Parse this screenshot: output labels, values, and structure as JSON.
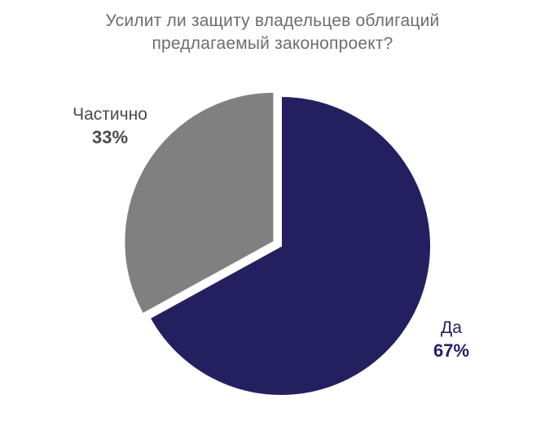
{
  "chart_data": {
    "type": "pie",
    "title": "Усилит ли защиту владельцев облигаций предлагаемый законопроект?",
    "title_lines": [
      "Усилит ли защиту владельцев облигаций",
      "предлагаемый законопроект?"
    ],
    "slices": [
      {
        "label": "Да",
        "value": 67,
        "display": "67%",
        "color": "#24205f",
        "exploded": false
      },
      {
        "label": "Частично",
        "value": 33,
        "display": "33%",
        "color": "#808080",
        "exploded": true
      }
    ]
  }
}
